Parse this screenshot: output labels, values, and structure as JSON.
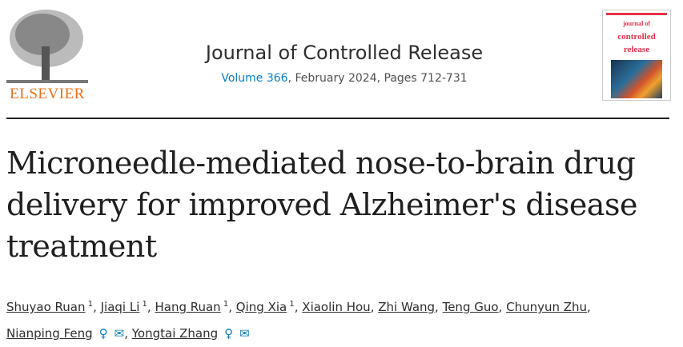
{
  "publisher": {
    "logo_text": "ELSEVIER"
  },
  "journal": {
    "title": "Journal of Controlled Release",
    "volume_link": "Volume 366",
    "issue_info": ", February 2024, Pages 712-731"
  },
  "cover": {
    "line1": "journal of",
    "line2": "controlled",
    "line3": "release"
  },
  "article": {
    "title": "Microneedle-mediated nose-to-brain drug delivery for improved Alzheimer's disease treatment"
  },
  "authors": [
    {
      "name": "Shuyao Ruan",
      "sup": "1"
    },
    {
      "name": "Jiaqi Li",
      "sup": "1"
    },
    {
      "name": "Hang Ruan",
      "sup": "1"
    },
    {
      "name": "Qing Xia",
      "sup": "1"
    },
    {
      "name": "Xiaolin Hou"
    },
    {
      "name": "Zhi Wang"
    },
    {
      "name": "Teng Guo"
    },
    {
      "name": "Chunyun Zhu"
    },
    {
      "name": "Nianping Feng",
      "icons": [
        "person-icon",
        "envelope-icon"
      ]
    },
    {
      "name": "Yongtai Zhang",
      "icons": [
        "person-icon",
        "envelope-icon"
      ]
    }
  ],
  "colors": {
    "accent": "#0c7dbb",
    "elsevier_orange": "#e9711c"
  }
}
